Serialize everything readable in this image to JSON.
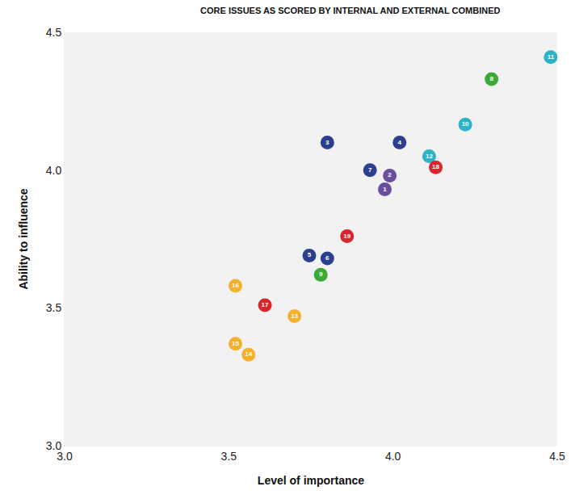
{
  "chart_data": {
    "type": "scatter",
    "title": "CORE ISSUES AS SCORED BY INTERNAL AND EXTERNAL COMBINED",
    "x_label": "Level of importance",
    "y_label": "Ability to influence",
    "labels": [
      "1",
      "2",
      "3",
      "4",
      "5",
      "6",
      "7",
      "8",
      "9",
      "10",
      "11",
      "12",
      "13",
      "14",
      "15",
      "16",
      "17",
      "18",
      "19"
    ],
    "x": [
      3.975,
      3.99,
      3.8,
      4.02,
      3.745,
      3.8,
      3.93,
      4.3,
      3.78,
      4.22,
      4.48,
      4.11,
      3.7,
      3.56,
      3.52,
      3.52,
      3.61,
      4.13,
      3.86
    ],
    "values": [
      3.93,
      3.98,
      4.1,
      4.1,
      3.69,
      3.68,
      4.0,
      4.33,
      3.62,
      4.165,
      4.41,
      4.05,
      3.47,
      3.33,
      3.37,
      3.58,
      3.51,
      4.01,
      3.76
    ],
    "colors": [
      "#6a4fa0",
      "#6a4fa0",
      "#2b3f8f",
      "#2b3f8f",
      "#2b3f8f",
      "#2b3f8f",
      "#2b3f8f",
      "#3aaa35",
      "#3aaa35",
      "#2bb3c8",
      "#2bb3c8",
      "#2bb3c8",
      "#f5b02e",
      "#f5b02e",
      "#f5b02e",
      "#f5b02e",
      "#d7262e",
      "#d7262e",
      "#d7262e"
    ],
    "marker": "circle",
    "xlim": [
      3.0,
      4.5
    ],
    "xticks": [
      {
        "value": 3.0,
        "label": "3.0"
      },
      {
        "value": 3.5,
        "label": "3.5"
      },
      {
        "value": 4.0,
        "label": "4.0"
      },
      {
        "value": 4.5,
        "label": "4.5"
      }
    ],
    "ylim": [
      3.0,
      4.5
    ],
    "yticks": [
      {
        "value": 3.0,
        "label": "3.0"
      },
      {
        "value": 3.5,
        "label": "3.5"
      },
      {
        "value": 4.0,
        "label": "4.0"
      },
      {
        "value": 4.5,
        "label": "4.5"
      }
    ],
    "grid": false
  }
}
